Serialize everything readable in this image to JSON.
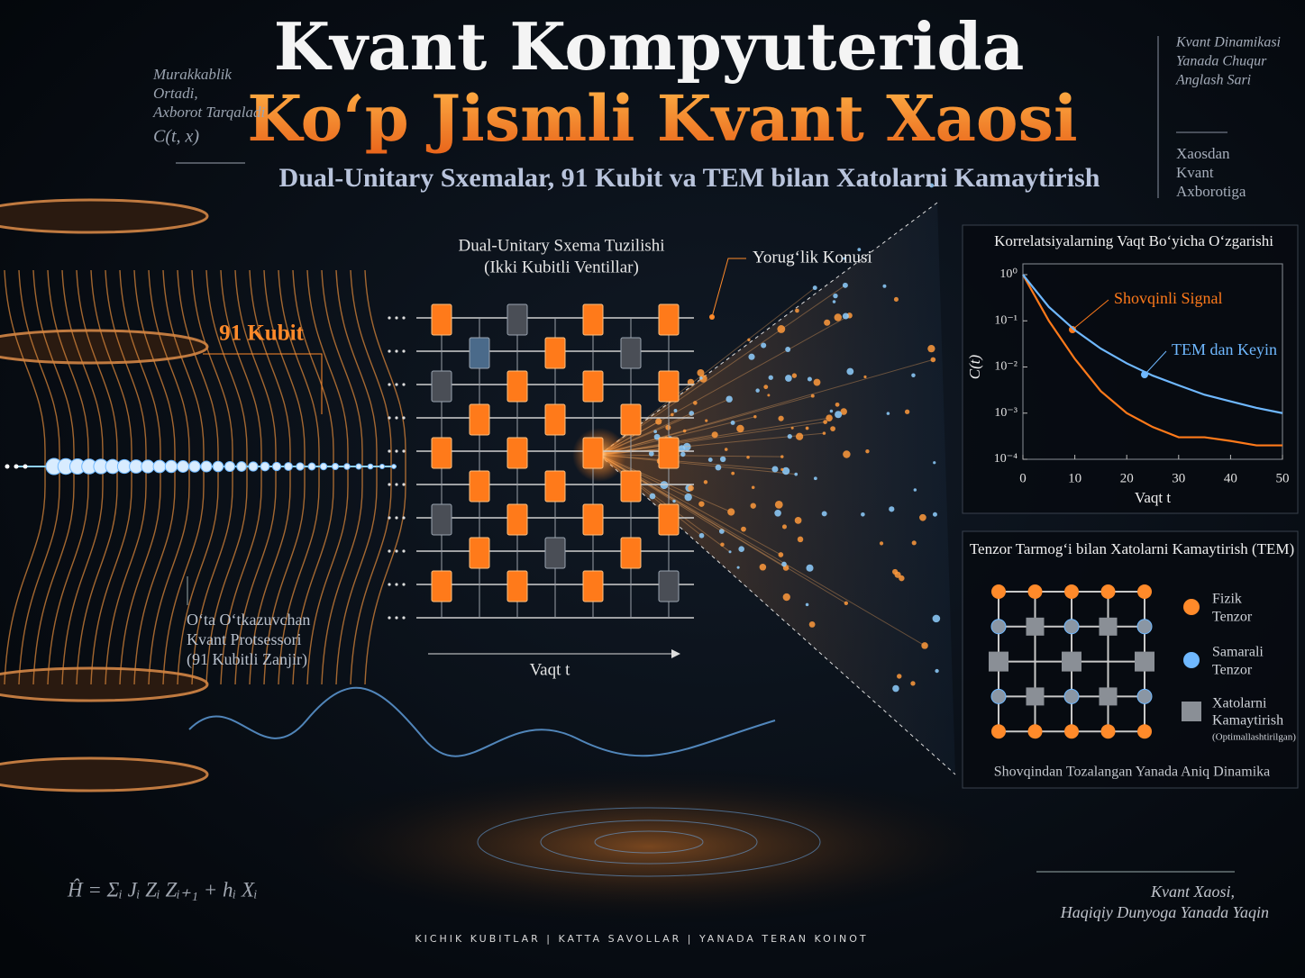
{
  "header": {
    "line1": "Kvant Kompyuterida",
    "line2": "Ko‘p Jismli Kvant Xaosi",
    "subtitle": "Dual-Unitary Sxemalar, 91 Kubit va TEM bilan Xatolarni Kamaytirish"
  },
  "left_note": {
    "lines": [
      "Murakkablik",
      "Ortadi,",
      "Axborot Tarqaladi"
    ],
    "formula": "C(t, x)"
  },
  "right_note_top": [
    "Kvant Dinamikasi",
    "Yanada Chuqur",
    "Anglash Sari"
  ],
  "right_note_mid": [
    "Xaosdan",
    "Kvant",
    "Axborotiga"
  ],
  "qubit_label": "91 Kubit",
  "processor_label": [
    "O‘ta O‘tkazuvchan",
    "Kvant Protsessori",
    "(91 Kubitli Zanjir)"
  ],
  "circuit": {
    "title": "Dual-Unitary Sxema Tuzilishi",
    "subtitle": "(Ikki Kubitli Ventillar)",
    "x_label": "Vaqt t"
  },
  "light_cone": "Yorug‘lik Konusi",
  "chart_data": {
    "type": "line",
    "title": "Korrelatsiyalarning Vaqt Bo‘yicha O‘zgarishi",
    "x_label": "Vaqt t",
    "y_label": "C(t)",
    "log_y": true,
    "xlim": [
      0,
      50
    ],
    "xticks": [
      0,
      10,
      20,
      30,
      40,
      50
    ],
    "ylim": [
      0.0001,
      1
    ],
    "yticks": [
      {
        "value": 1,
        "label": "10⁰"
      },
      {
        "value": 0.1,
        "label": "10⁻¹"
      },
      {
        "value": 0.01,
        "label": "10⁻²"
      },
      {
        "value": 0.001,
        "label": "10⁻³"
      },
      {
        "value": 0.0001,
        "label": "10⁻⁴"
      }
    ],
    "x": [
      0,
      5,
      10,
      15,
      20,
      25,
      30,
      35,
      40,
      45,
      50
    ],
    "series": [
      {
        "name": "Shovqinli Signal",
        "color": "#ff7a1a",
        "values": [
          1,
          0.1,
          0.015,
          0.003,
          0.001,
          0.0005,
          0.0003,
          0.0003,
          0.00025,
          0.0002,
          0.0002
        ]
      },
      {
        "name": "TEM dan Keyin",
        "color": "#6fb8ff",
        "values": [
          1,
          0.2,
          0.063,
          0.025,
          0.012,
          0.0065,
          0.004,
          0.0025,
          0.0018,
          0.0013,
          0.001
        ]
      }
    ]
  },
  "tem": {
    "title": "Tenzor Tarmog‘i bilan Xatolarni Kamaytirish (TEM)",
    "legend": [
      {
        "lines": [
          "Fizik",
          "Tenzor"
        ]
      },
      {
        "lines": [
          "Samarali",
          "Tenzor"
        ]
      },
      {
        "lines": [
          "Xatolarni",
          "Kamaytirish",
          "(Optimallashtirilgan)"
        ]
      }
    ],
    "caption": "Shovqindan Tozalangan Yanada Aniq Dinamika"
  },
  "formula": "Ĥ = Σᵢ Jᵢ Zᵢ Zᵢ₊₁ + hᵢ Xᵢ",
  "bottom_right": [
    "Kvant Xaosi,",
    "Haqiqiy Dunyoga Yanada Yaqin"
  ],
  "footer": "KICHIK KUBITLAR  |  KATTA SAVOLLAR  |  YANADA TERAN KOINOT"
}
